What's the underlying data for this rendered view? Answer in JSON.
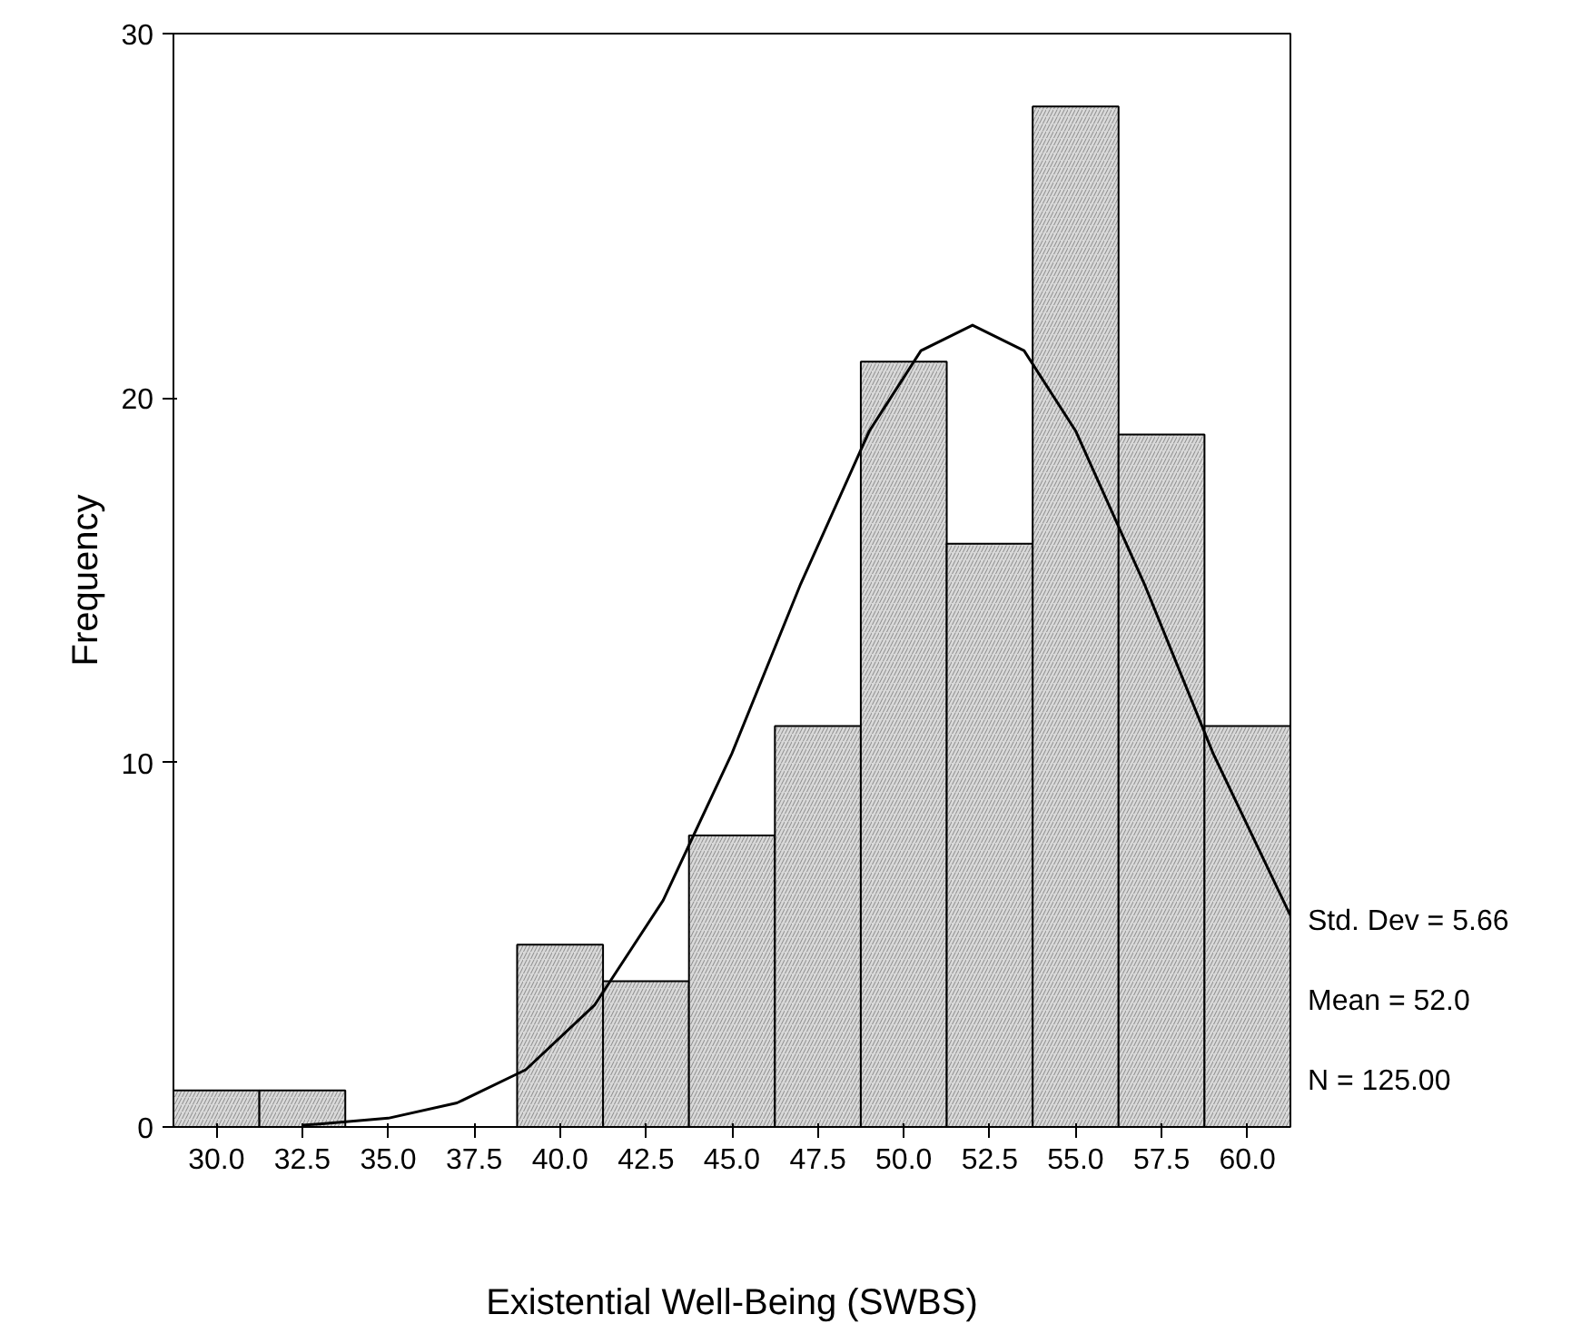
{
  "chart_data": {
    "type": "histogram",
    "xlabel": "Existential Well-Being (SWBS)",
    "ylabel": "Frequency",
    "bins": [
      28.75,
      31.25,
      33.75,
      36.25,
      38.75,
      41.25,
      43.75,
      46.25,
      48.75,
      51.25,
      53.75,
      56.25,
      58.75,
      61.25
    ],
    "values": [
      1,
      1,
      0,
      0,
      5,
      4,
      8,
      11,
      21,
      16,
      28,
      19,
      11
    ],
    "color": "#d9d9d9",
    "series": [
      {
        "type": "line",
        "color": "#000000",
        "x": [
          32.5,
          33,
          35,
          37,
          39,
          41,
          43,
          45,
          47,
          49,
          50.5,
          52,
          53.5,
          55,
          57,
          59,
          61.25
        ],
        "values": [
          0.05,
          0.08,
          0.24,
          0.66,
          1.57,
          3.34,
          6.22,
          10.25,
          14.9,
          19.1,
          21.3,
          22.0,
          21.3,
          19.1,
          14.9,
          10.25,
          5.8
        ]
      }
    ],
    "xlim": [
      28.75,
      61.25
    ],
    "ylim": [
      0,
      30
    ],
    "xticks": [
      {
        "value": 30,
        "label": "30.0"
      },
      {
        "value": 32.5,
        "label": "32.5"
      },
      {
        "value": 35,
        "label": "35.0"
      },
      {
        "value": 37.5,
        "label": "37.5"
      },
      {
        "value": 40,
        "label": "40.0"
      },
      {
        "value": 42.5,
        "label": "42.5"
      },
      {
        "value": 45,
        "label": "45.0"
      },
      {
        "value": 47.5,
        "label": "47.5"
      },
      {
        "value": 50,
        "label": "50.0"
      },
      {
        "value": 52.5,
        "label": "52.5"
      },
      {
        "value": 55,
        "label": "55.0"
      },
      {
        "value": 57.5,
        "label": "57.5"
      },
      {
        "value": 60,
        "label": "60.0"
      }
    ],
    "yticks": [
      0,
      10,
      20,
      30
    ],
    "annotations": [
      "Std. Dev = 5.66",
      "Mean = 52.0",
      "N = 125.00"
    ],
    "grid": false
  }
}
